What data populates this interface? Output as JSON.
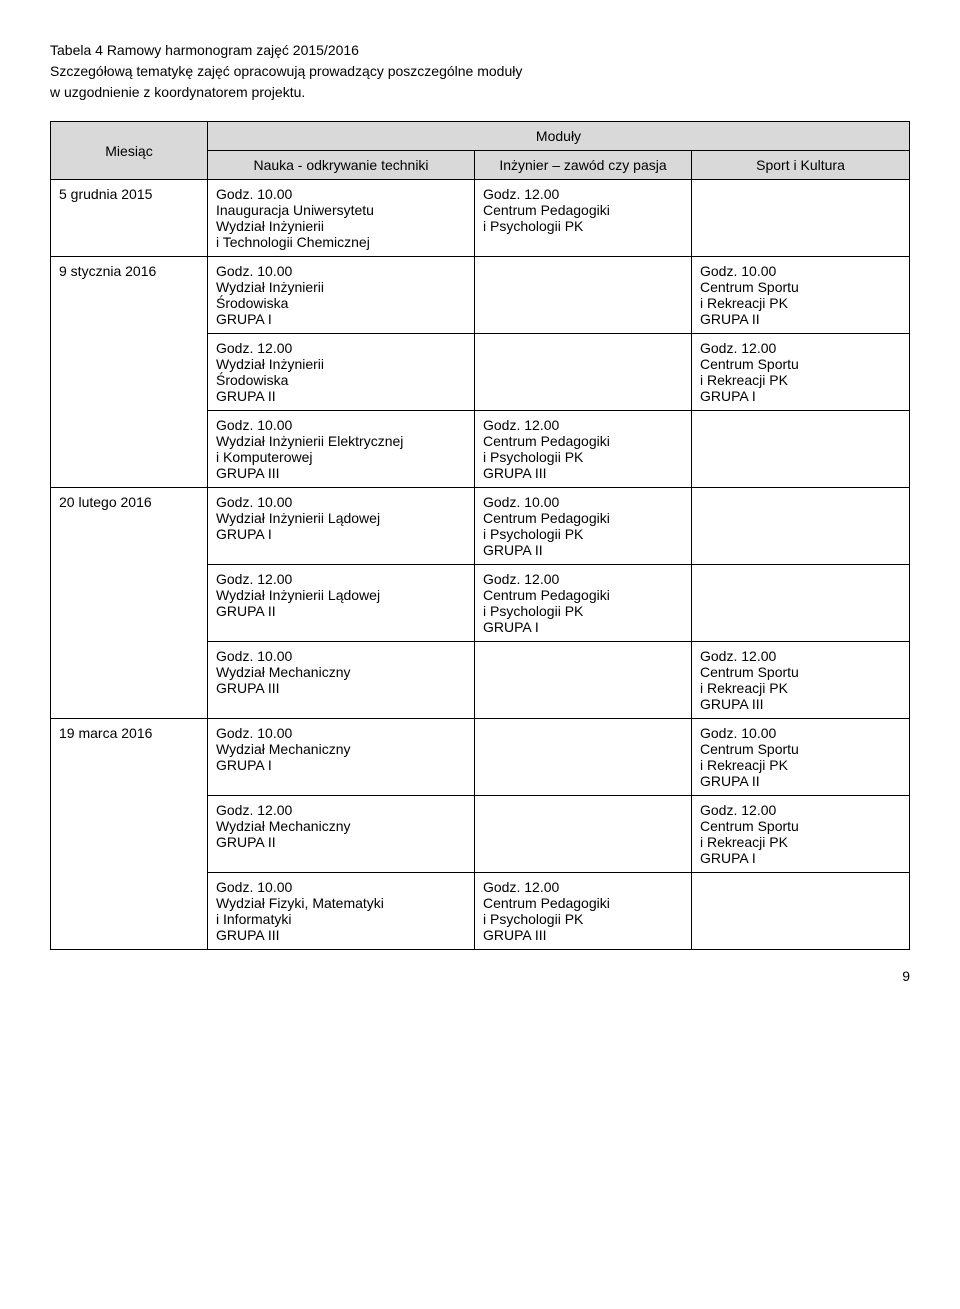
{
  "intro": {
    "line1": "Tabela 4 Ramowy harmonogram zajęć 2015/2016",
    "line2": "Szczegółową tematykę zajęć opracowują prowadzący poszczególne moduły",
    "line3": "w uzgodnienie z koordynatorem projektu."
  },
  "headers": {
    "month": "Miesiąc",
    "modules": "Moduły",
    "col1": "Nauka  - odkrywanie techniki",
    "col2": "Inżynier – zawód czy pasja",
    "col3": "Sport i Kultura"
  },
  "rows": {
    "r1": {
      "month": "5 grudnia 2015",
      "c1": {
        "b1": "Godz. 10.00\nInauguracja Uniwersytetu\nWydział Inżynierii\ni Technologii Chemicznej"
      },
      "c2": {
        "b1": "Godz. 12.00\nCentrum Pedagogiki\ni Psychologii PK"
      },
      "c3": {
        "b1": ""
      }
    },
    "r2": {
      "month": "9 stycznia 2016",
      "c1": {
        "b1": "Godz. 10.00\nWydział Inżynierii\nŚrodowiska\nGRUPA I",
        "b2": "Godz. 12.00\nWydział Inżynierii\nŚrodowiska\nGRUPA II",
        "b3": "Godz. 10.00\nWydział Inżynierii Elektrycznej\ni Komputerowej\nGRUPA III"
      },
      "c2": {
        "b1": "",
        "b2": "",
        "b3": "Godz. 12.00\nCentrum Pedagogiki\ni Psychologii PK\nGRUPA III"
      },
      "c3": {
        "b1": "Godz. 10.00\nCentrum Sportu\ni Rekreacji PK\nGRUPA II",
        "b2": "Godz. 12.00\nCentrum Sportu\ni Rekreacji PK\nGRUPA I",
        "b3": ""
      }
    },
    "r3": {
      "month": "20 lutego 2016",
      "c1": {
        "b1": "Godz. 10.00\nWydział Inżynierii Lądowej\nGRUPA I",
        "b2": "Godz. 12.00\nWydział Inżynierii Lądowej\nGRUPA II",
        "b3": "Godz. 10.00\nWydział Mechaniczny\nGRUPA III"
      },
      "c2": {
        "b1": "Godz. 10.00\nCentrum Pedagogiki\ni Psychologii PK\nGRUPA II",
        "b2": "Godz. 12.00\nCentrum Pedagogiki\ni Psychologii PK\nGRUPA I",
        "b3": ""
      },
      "c3": {
        "b1": "",
        "b2": "",
        "b3": "Godz. 12.00\nCentrum Sportu\ni Rekreacji PK\nGRUPA III"
      }
    },
    "r4": {
      "month": "19 marca 2016",
      "c1": {
        "b1": "Godz. 10.00\nWydział Mechaniczny\nGRUPA I",
        "b2": "Godz. 12.00\nWydział Mechaniczny\nGRUPA II",
        "b3": "Godz. 10.00\nWydział Fizyki, Matematyki\ni Informatyki\nGRUPA III"
      },
      "c2": {
        "b1": "",
        "b2": "",
        "b3": "Godz. 12.00\nCentrum Pedagogiki\ni Psychologii PK\nGRUPA III"
      },
      "c3": {
        "b1": "Godz. 10.00\nCentrum Sportu\ni Rekreacji PK\nGRUPA II",
        "b2": "Godz. 12.00\nCentrum Sportu\ni Rekreacji PK\nGRUPA I",
        "b3": ""
      }
    }
  },
  "page_number": "9"
}
